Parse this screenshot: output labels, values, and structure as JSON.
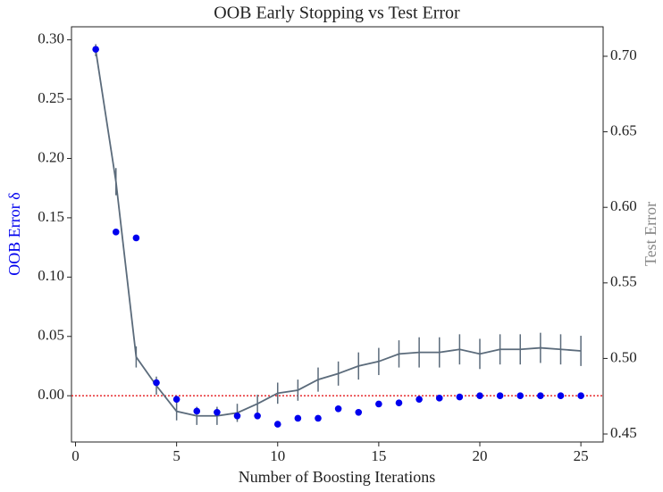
{
  "chart_data": {
    "type": "scatter-line",
    "title": "OOB Early Stopping vs Test Error",
    "x_label": "Number of Boosting Iterations",
    "y_label": "OOB Error δ",
    "y2_label": "Test Error",
    "xlim": [
      -0.2,
      26.1
    ],
    "xticks": [
      0,
      5,
      10,
      15,
      20,
      25
    ],
    "ylim": [
      -0.039,
      0.311
    ],
    "yticks": [
      {
        "value": 0,
        "label": "0.00"
      },
      {
        "value": 0.05,
        "label": "0.05"
      },
      {
        "value": 0.1,
        "label": "0.10"
      },
      {
        "value": 0.15,
        "label": "0.15"
      },
      {
        "value": 0.2,
        "label": "0.20"
      },
      {
        "value": 0.25,
        "label": "0.25"
      },
      {
        "value": 0.3,
        "label": "0.30"
      }
    ],
    "y2lim": [
      0.4447,
      0.7195
    ],
    "y2ticks": [
      {
        "value": 0.45,
        "label": "0.45"
      },
      {
        "value": 0.5,
        "label": "0.50"
      },
      {
        "value": 0.55,
        "label": "0.55"
      },
      {
        "value": 0.6,
        "label": "0.60"
      },
      {
        "value": 0.65,
        "label": "0.65"
      },
      {
        "value": 0.7,
        "label": "0.70"
      }
    ],
    "reference_line": {
      "value": 0,
      "color": "#e41a1c"
    },
    "x": [
      1,
      2,
      3,
      4,
      5,
      6,
      7,
      8,
      9,
      10,
      11,
      12,
      13,
      14,
      15,
      16,
      17,
      18,
      19,
      20,
      21,
      22,
      23,
      24,
      25
    ],
    "series": [
      {
        "name": "OOB Error δ",
        "kind": "scatter",
        "color": "#0000ee",
        "values": [
          0.292,
          0.138,
          0.133,
          0.011,
          -0.003,
          -0.013,
          -0.014,
          -0.017,
          -0.017,
          -0.024,
          -0.019,
          -0.019,
          -0.011,
          -0.014,
          -0.007,
          -0.006,
          -0.003,
          -0.002,
          -0.001,
          0,
          0,
          0,
          0,
          0,
          0
        ]
      },
      {
        "name": "Test Error",
        "kind": "line",
        "axis": "y2",
        "color": "#5b6b7b",
        "values": [
          0.704,
          0.617,
          0.501,
          0.482,
          0.465,
          0.462,
          0.462,
          0.464,
          0.47,
          0.477,
          0.479,
          0.486,
          0.49,
          0.495,
          0.498,
          0.503,
          0.504,
          0.504,
          0.506,
          0.503,
          0.506,
          0.506,
          0.507,
          0.506,
          0.505
        ],
        "errors": [
          0.004,
          0.009,
          0.007,
          0.006,
          0.006,
          0.006,
          0.006,
          0.006,
          0.006,
          0.007,
          0.007,
          0.008,
          0.008,
          0.009,
          0.009,
          0.009,
          0.01,
          0.01,
          0.01,
          0.01,
          0.01,
          0.01,
          0.01,
          0.01,
          0.01
        ]
      }
    ]
  }
}
